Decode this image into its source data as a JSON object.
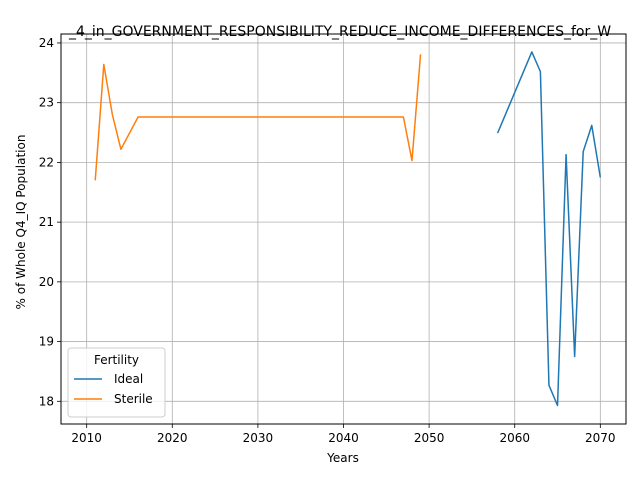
{
  "chart_data": {
    "type": "line",
    "title": "_4_in_GOVERNMENT_RESPONSIBILITY_REDUCE_INCOME_DIFFERENCES_for_W",
    "xlabel": "Years",
    "ylabel": "% of Whole Q4_IQ Population",
    "xlim": [
      2007,
      2073
    ],
    "ylim": [
      17.62,
      24.15
    ],
    "xticks": [
      2010,
      2020,
      2030,
      2040,
      2050,
      2060,
      2070
    ],
    "yticks": [
      18,
      19,
      20,
      21,
      22,
      23,
      24
    ],
    "grid": true,
    "legend": {
      "title": "Fertility",
      "placement": "lower-left"
    },
    "series": [
      {
        "name": "Ideal",
        "color": "#1f77b4",
        "points": [
          [
            2058,
            22.49
          ],
          [
            2062,
            23.85
          ],
          [
            2063,
            23.52
          ],
          [
            2064,
            18.27
          ],
          [
            2065,
            17.93
          ],
          [
            2066,
            22.13
          ],
          [
            2067,
            18.75
          ],
          [
            2068,
            22.18
          ],
          [
            2069,
            22.62
          ],
          [
            2070,
            21.75
          ]
        ]
      },
      {
        "name": "Sterile",
        "color": "#ff7f0e",
        "points": [
          [
            2011,
            21.7
          ],
          [
            2012,
            23.64
          ],
          [
            2013,
            22.8
          ],
          [
            2014,
            22.22
          ],
          [
            2016,
            22.76
          ],
          [
            2047,
            22.76
          ],
          [
            2048,
            22.03
          ],
          [
            2049,
            23.81
          ]
        ]
      }
    ]
  }
}
